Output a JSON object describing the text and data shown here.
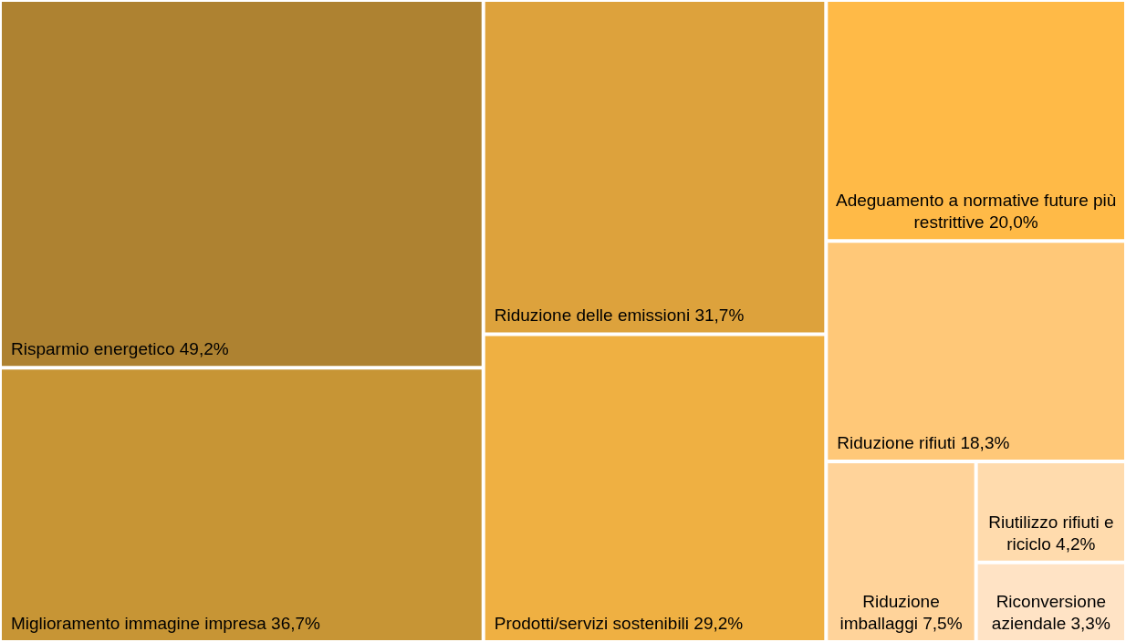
{
  "chart_data": {
    "type": "other",
    "categories": [
      "Risparmio energetico",
      "Miglioramento immagine impresa",
      "Riduzione delle emissioni",
      "Prodotti/servizi sostenibili",
      "Adeguamento a normative future più restrittive",
      "Riduzione rifiuti",
      "Riduzione imballaggi",
      "Riutilizzo rifiuti e riciclo",
      "Riconversione aziendale"
    ],
    "values": [
      49.2,
      36.7,
      31.7,
      29.2,
      20.0,
      18.3,
      7.5,
      4.2,
      3.3
    ],
    "value_labels": [
      "49,2%",
      "36,7%",
      "31,7%",
      "29,2%",
      "20,0%",
      "18,3%",
      "7,5%",
      "4,2%",
      "3,3%"
    ],
    "colors": [
      "#ae8231",
      "#c79535",
      "#dda23c",
      "#efb042",
      "#ffba47",
      "#ffc878",
      "#ffd39a",
      "#ffdbad",
      "#ffe3c5"
    ]
  }
}
